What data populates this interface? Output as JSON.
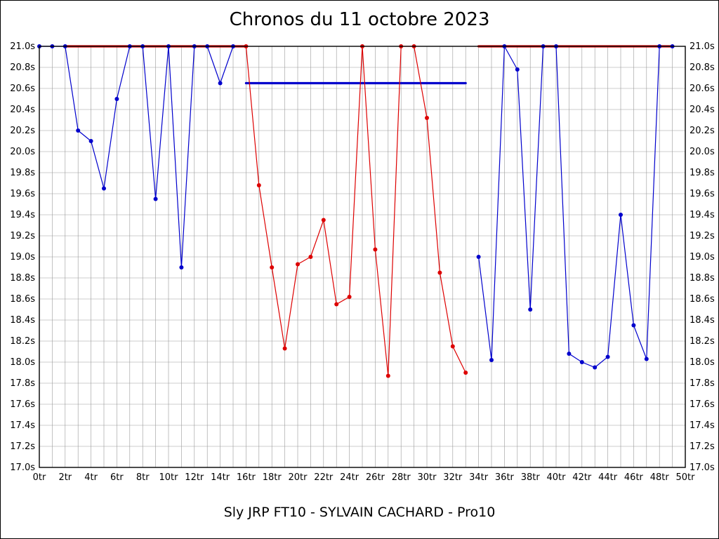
{
  "title": "Chronos du 11 octobre 2023",
  "subtitle": "Sly JRP FT10 - SYLVAIN CACHARD - Pro10",
  "colors": {
    "blue": "#0000cc",
    "red": "#dd0000",
    "grid": "#999999",
    "axis": "#000000"
  },
  "chart_data": {
    "type": "line",
    "title": "Chronos du 11 octobre 2023",
    "xlabel": "",
    "ylabel": "",
    "xlim": [
      0,
      50
    ],
    "ylim": [
      17.0,
      21.0
    ],
    "x_tick_step": 2,
    "y_tick_step": 0.2,
    "x_minor_step": 1,
    "grid": true,
    "x_tick_labels": [
      "0tr",
      "2tr",
      "4tr",
      "6tr",
      "8tr",
      "10tr",
      "12tr",
      "14tr",
      "16tr",
      "18tr",
      "20tr",
      "22tr",
      "24tr",
      "26tr",
      "28tr",
      "30tr",
      "32tr",
      "34tr",
      "36tr",
      "38tr",
      "40tr",
      "42tr",
      "44tr",
      "46tr",
      "48tr",
      "50tr"
    ],
    "y_tick_labels": [
      "21.0s",
      "20.8s",
      "20.6s",
      "20.4s",
      "20.2s",
      "20.0s",
      "19.8s",
      "19.6s",
      "19.4s",
      "19.2s",
      "19.0s",
      "18.8s",
      "18.6s",
      "18.4s",
      "18.2s",
      "18.0s",
      "17.8s",
      "17.6s",
      "17.4s",
      "17.2s",
      "17.0s"
    ],
    "series": [
      {
        "name": "blue-run-first-stint",
        "color": "#0000cc",
        "x": [
          0,
          1,
          2,
          3,
          4,
          5,
          6,
          7,
          8,
          9,
          10,
          11,
          12,
          13,
          14,
          15
        ],
        "values": [
          21.0,
          21.0,
          21.0,
          20.2,
          20.1,
          19.65,
          20.5,
          21.0,
          21.0,
          19.55,
          21.0,
          18.9,
          21.0,
          21.0,
          20.65,
          21.0
        ]
      },
      {
        "name": "red-run",
        "color": "#dd0000",
        "x": [
          16,
          17,
          18,
          19,
          20,
          21,
          22,
          23,
          24,
          25,
          26,
          27,
          28,
          29,
          30,
          31,
          32,
          33
        ],
        "values": [
          21.0,
          19.68,
          18.9,
          18.13,
          18.93,
          19.0,
          19.35,
          18.55,
          18.62,
          21.0,
          19.07,
          17.87,
          21.0,
          21.0,
          20.32,
          18.85,
          18.15,
          17.9
        ]
      },
      {
        "name": "blue-run-second-stint",
        "color": "#0000cc",
        "x": [
          34,
          35,
          36,
          37,
          38,
          39,
          40,
          41,
          42,
          43,
          44,
          45,
          46,
          47,
          48,
          49
        ],
        "values": [
          19.0,
          18.02,
          21.0,
          20.78,
          18.5,
          21.0,
          21.0,
          18.08,
          18.0,
          17.95,
          18.05,
          19.4,
          18.35,
          18.03,
          21.0,
          21.0
        ]
      }
    ],
    "reference_lines": [
      {
        "name": "red-cap-line-left",
        "color": "#dd0000",
        "y": 21.0,
        "x1": 2,
        "x2": 16
      },
      {
        "name": "blue-average-line",
        "color": "#0000cc",
        "y": 20.65,
        "x1": 16,
        "x2": 33
      },
      {
        "name": "red-cap-line-right",
        "color": "#dd0000",
        "y": 21.0,
        "x1": 34,
        "x2": 49
      }
    ],
    "legend": null
  }
}
